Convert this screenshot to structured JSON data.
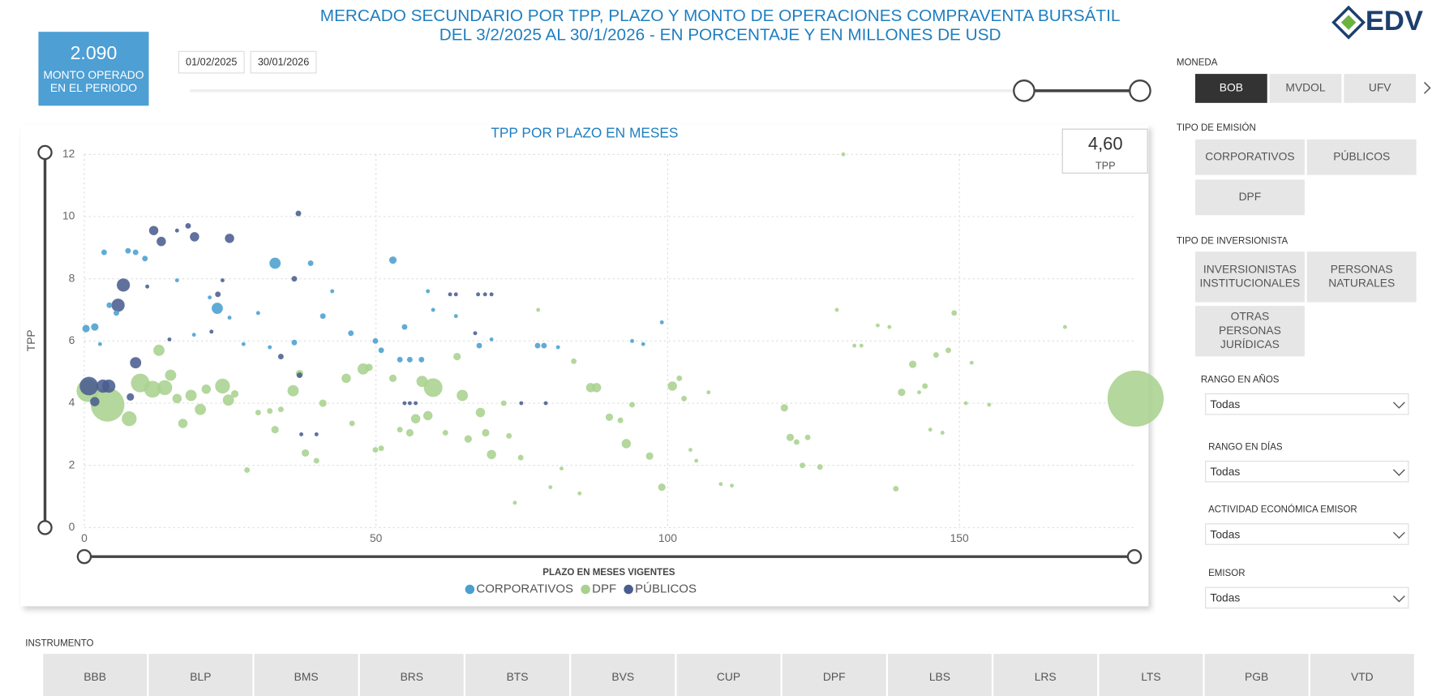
{
  "header": {
    "title_lines": [
      "MERCADO SECUNDARIO POR TPP, PLAZO Y MONTO DE OPERACIONES COMPRAVENTA BURSÁTIL",
      "DEL 3/2/2025 AL 30/1/2026 - EN PORCENTAJE Y EN MILLONES DE USD"
    ],
    "logo": "EDV"
  },
  "kpi": {
    "value": "2.090",
    "label_lines": [
      "MONTO OPERADO",
      "EN EL PERIODO"
    ]
  },
  "date_slicer": {
    "start": "01/02/2025",
    "end": "30/01/2026"
  },
  "tpp_card": {
    "value": "4,60",
    "label": "TPP"
  },
  "chart_data": {
    "type": "scatter",
    "title": "TPP POR PLAZO EN MESES",
    "x_label": "PLAZO EN MESES VIGENTES",
    "y_label": "TPP",
    "xlim": [
      0,
      180
    ],
    "ylim": [
      0,
      12
    ],
    "xticks": [
      0,
      50,
      100,
      150
    ],
    "yticks": [
      0,
      2,
      4,
      6,
      8,
      10,
      12
    ],
    "grid": true,
    "legend": "bottom",
    "series": [
      {
        "name": "CORPORATIVOS",
        "color": "#4a9fd0",
        "x": [
          0.3,
          1.8,
          2.7,
          3.4,
          4.3,
          5.5,
          7.5,
          8.8,
          10.4,
          15.9,
          18.8,
          21.5,
          22.8,
          24.9,
          27.3,
          29.8,
          31.8,
          32.7,
          36,
          38.8,
          40.9,
          42.5,
          45.7,
          49.9,
          50.9,
          52.9,
          54.1,
          54.9,
          55.8,
          57.8,
          58.9,
          59.8,
          63.7,
          67.7,
          69.8,
          77.7,
          78.8,
          81.2,
          93.9,
          95.8,
          99
        ],
        "values": [
          6.4,
          6.45,
          5.9,
          8.85,
          7.15,
          6.9,
          8.9,
          8.85,
          8.65,
          7.95,
          6.2,
          7.4,
          7.05,
          6.75,
          5.9,
          6.9,
          5.8,
          8.5,
          5.95,
          8.5,
          6.8,
          7.6,
          6.25,
          6.0,
          5.7,
          8.6,
          5.4,
          6.45,
          5.4,
          5.4,
          7.6,
          7.0,
          6.8,
          5.85,
          6.05,
          5.85,
          5.85,
          5.8,
          6.0,
          5.9,
          6.6
        ],
        "sizes": [
          7,
          7,
          2,
          4,
          4,
          4,
          4,
          4,
          4,
          2,
          2,
          2,
          16,
          2,
          2,
          2,
          2,
          16,
          4,
          4,
          4,
          2,
          4,
          4,
          4,
          7,
          4,
          4,
          4,
          4,
          2,
          2,
          2,
          4,
          2,
          4,
          4,
          2,
          2,
          2,
          2
        ]
      },
      {
        "name": "DPF",
        "color": "#a9d18e",
        "x": [
          0.6,
          4.0,
          7.7,
          9.6,
          11.7,
          12.8,
          13.8,
          14.8,
          15.9,
          16.9,
          18.3,
          19.9,
          20.9,
          23.7,
          24.7,
          25.8,
          27.9,
          29.8,
          31.8,
          32.7,
          33.7,
          35.8,
          36.9,
          37.9,
          39.8,
          40.9,
          44.9,
          45.9,
          47.8,
          48.8,
          49.9,
          50.9,
          52.9,
          54.1,
          55.8,
          56.8,
          57.9,
          58.9,
          59.8,
          61.9,
          63.9,
          64.8,
          65.8,
          67.9,
          68.8,
          69.8,
          71.9,
          72.8,
          73.8,
          74.8,
          77.8,
          79.9,
          81.8,
          83.9,
          84.9,
          86.8,
          87.8,
          90,
          91.9,
          92.9,
          93.9,
          96.9,
          99,
          100.8,
          102,
          102.8,
          103.9,
          104.9,
          107,
          109.1,
          111,
          120,
          121,
          122.1,
          123.1,
          124,
          126.1,
          130.1,
          129,
          132,
          133.2,
          136,
          138,
          139.1,
          140.1,
          142,
          143.1,
          144.1,
          145,
          146,
          147.1,
          148.1,
          149.1,
          151.1,
          152.1,
          155.1,
          168.1,
          180.2
        ],
        "values": [
          4.4,
          3.95,
          3.5,
          4.65,
          4.45,
          5.7,
          4.5,
          4.9,
          4.15,
          3.35,
          4.25,
          3.8,
          4.45,
          4.55,
          4.1,
          4.3,
          1.85,
          3.7,
          3.75,
          3.15,
          3.8,
          4.4,
          4.95,
          2.4,
          2.15,
          4.0,
          4.8,
          3.35,
          5.1,
          5.15,
          2.5,
          2.55,
          4.8,
          3.15,
          3.05,
          3.5,
          4.7,
          3.6,
          4.5,
          3.05,
          5.5,
          4.25,
          2.85,
          3.7,
          3.05,
          2.35,
          4.0,
          2.95,
          0.8,
          2.25,
          7.0,
          1.3,
          1.9,
          5.35,
          1.1,
          4.5,
          4.5,
          3.55,
          3.45,
          2.7,
          3.95,
          2.3,
          1.3,
          4.55,
          4.8,
          4.15,
          2.5,
          2.15,
          4.35,
          1.4,
          1.35,
          3.85,
          2.9,
          2.75,
          2.0,
          2.9,
          1.95,
          12.0,
          7.0,
          5.85,
          5.85,
          6.5,
          6.45,
          1.25,
          4.35,
          5.25,
          4.35,
          4.55,
          3.15,
          5.55,
          3.05,
          5.7,
          6.9,
          4.0,
          5.3,
          3.95,
          6.45,
          4.15
        ],
        "sizes": [
          64,
          144,
          28,
          44,
          36,
          16,
          28,
          16,
          11,
          11,
          16,
          16,
          11,
          28,
          16,
          7,
          4,
          4,
          4,
          7,
          4,
          16,
          7,
          7,
          4,
          7,
          11,
          4,
          16,
          7,
          4,
          4,
          7,
          4,
          7,
          11,
          16,
          11,
          44,
          4,
          7,
          16,
          7,
          11,
          7,
          11,
          4,
          4,
          2,
          4,
          2,
          2,
          2,
          4,
          2,
          11,
          11,
          7,
          4,
          11,
          4,
          7,
          7,
          11,
          4,
          4,
          2,
          2,
          2,
          2,
          2,
          7,
          7,
          4,
          4,
          4,
          4,
          2,
          2,
          2,
          2,
          2,
          2,
          4,
          7,
          7,
          2,
          4,
          2,
          4,
          2,
          4,
          4,
          2,
          2,
          2,
          2,
          400
        ]
      },
      {
        "name": "PÚBLICOS",
        "color": "#4a5d8f",
        "x": [
          0.8,
          1.8,
          3.2,
          4.2,
          5.8,
          6.7,
          7.9,
          8.8,
          10.8,
          11.9,
          13.2,
          14.6,
          15.9,
          17.8,
          18.9,
          21.8,
          22.9,
          23.7,
          24.9,
          33.7,
          36,
          36.7,
          37.2,
          39.8,
          54.9,
          55.8,
          56.8,
          62.7,
          63.7,
          67.5,
          68.7,
          69.8,
          67,
          79.1,
          74.9,
          36.9
        ],
        "values": [
          4.55,
          4.05,
          4.55,
          4.55,
          7.15,
          7.8,
          4.2,
          5.3,
          7.75,
          9.55,
          9.2,
          6.05,
          9.55,
          9.7,
          9.35,
          6.3,
          7.5,
          7.95,
          9.3,
          5.5,
          8.0,
          10.1,
          3.0,
          3.0,
          4.0,
          4.0,
          4.0,
          7.5,
          7.5,
          7.5,
          7.5,
          7.5,
          6.25,
          4.0,
          4.0,
          4.9
        ],
        "sizes": [
          44,
          11,
          22,
          22,
          22,
          22,
          7,
          16,
          2,
          11,
          11,
          2,
          2,
          4,
          11,
          2,
          4,
          2,
          11,
          4,
          4,
          4,
          2,
          2,
          2,
          2,
          2,
          2,
          2,
          2,
          2,
          2,
          2,
          2,
          2,
          4
        ]
      }
    ]
  },
  "filters": {
    "moneda": {
      "label": "MONEDA",
      "options": [
        "BOB",
        "MVDOL",
        "UFV"
      ],
      "selected": "BOB"
    },
    "tipo_emision": {
      "label": "TIPO DE EMISIÓN",
      "options": [
        "CORPORATIVOS",
        "PÚBLICOS",
        "DPF"
      ]
    },
    "tipo_inversionista": {
      "label": "TIPO DE INVERSIONISTA",
      "options": [
        [
          "INVERSIONISTAS",
          "INSTITUCIONALES"
        ],
        [
          "PERSONAS",
          "NATURALES"
        ],
        [
          "OTRAS",
          "PERSONAS",
          "JURÍDICAS"
        ]
      ]
    },
    "dropdowns": [
      {
        "label": "RANGO EN AÑOS",
        "value": "Todas"
      },
      {
        "label": "RANGO EN DÍAS",
        "value": "Todas"
      },
      {
        "label": "ACTIVIDAD ECONÓMICA EMISOR",
        "value": "Todas"
      },
      {
        "label": "EMISOR",
        "value": "Todas"
      }
    ]
  },
  "instrumento": {
    "label": "INSTRUMENTO",
    "options": [
      "BBB",
      "BLP",
      "BMS",
      "BRS",
      "BTS",
      "BVS",
      "CUP",
      "DPF",
      "LBS",
      "LRS",
      "LTS",
      "PGB",
      "VTD"
    ]
  }
}
